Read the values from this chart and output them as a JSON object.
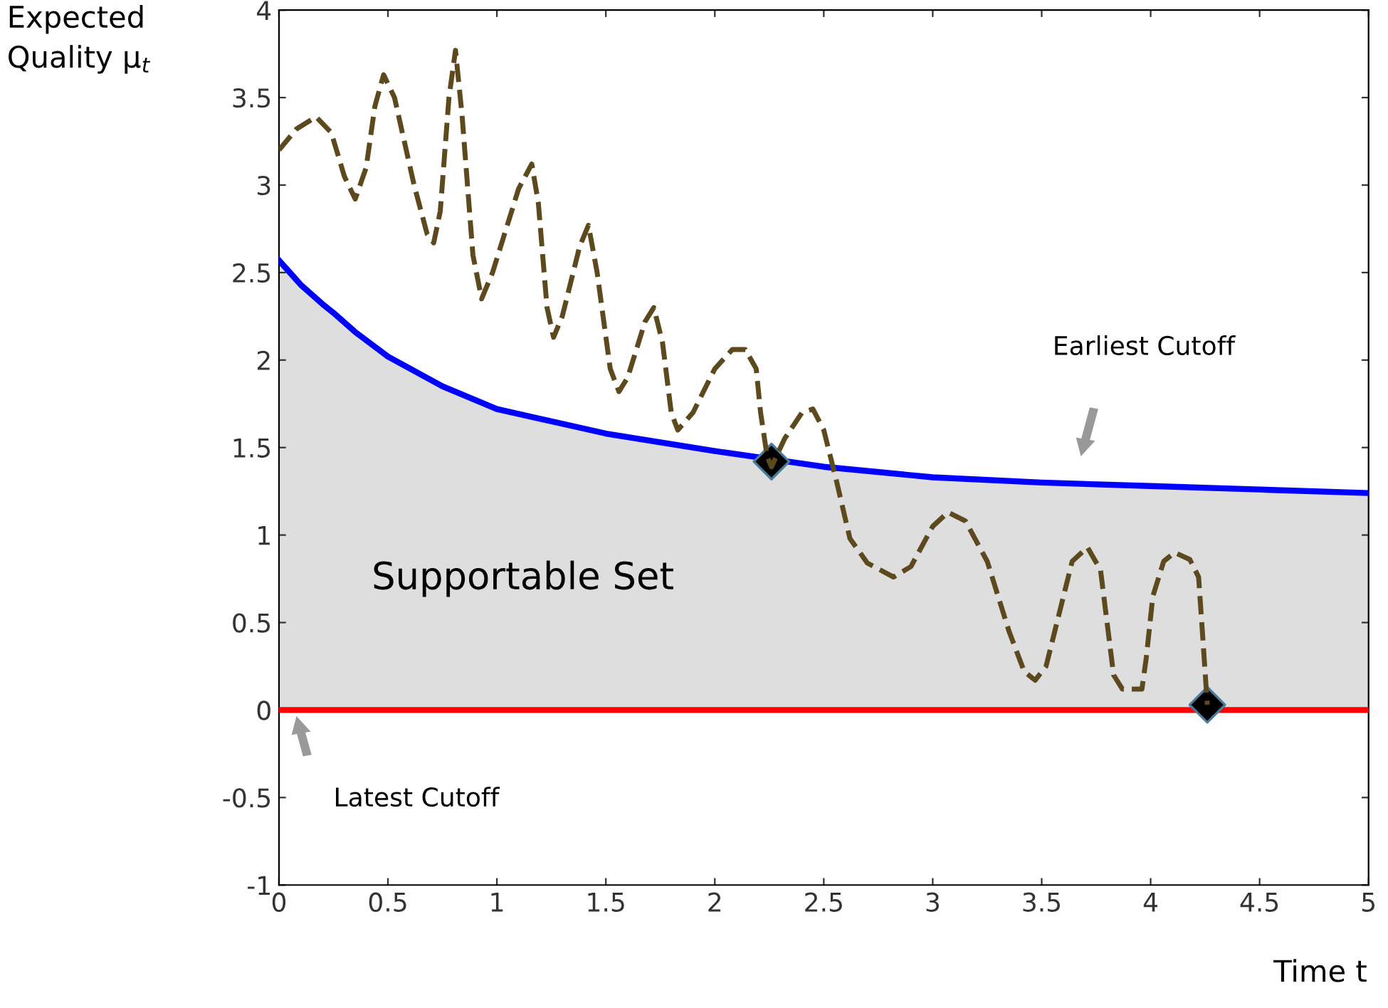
{
  "chart_data": {
    "type": "line",
    "xlabel": "Time t",
    "ylabel": "Expected\nQuality μ$_{t}$",
    "xlim": [
      0,
      5
    ],
    "ylim": [
      -1,
      4
    ],
    "xticks": [
      0,
      0.5,
      1,
      1.5,
      2,
      2.5,
      3,
      3.5,
      4,
      4.5,
      5
    ],
    "yticks": [
      -1,
      -0.5,
      0,
      0.5,
      1,
      1.5,
      2,
      2.5,
      3,
      3.5,
      4
    ],
    "series": [
      {
        "type": "area",
        "color": "#0000ff",
        "x": [
          0,
          0.05,
          0.1,
          0.2,
          0.25,
          0.35,
          0.5,
          0.75,
          1,
          1.5,
          2,
          2.5,
          3,
          3.5,
          4,
          4.5,
          5
        ],
        "values": [
          2.57,
          2.5,
          2.43,
          2.32,
          2.27,
          2.16,
          2.02,
          1.85,
          1.72,
          1.58,
          1.48,
          1.39,
          1.33,
          1.3,
          1.28,
          1.26,
          1.24
        ]
      },
      {
        "color": "#ff0000",
        "x": [
          0,
          5
        ],
        "values": [
          0,
          0
        ]
      },
      {
        "color": "#5c4a1e",
        "line_style": "dashed",
        "x": [
          0,
          0.08,
          0.17,
          0.24,
          0.3,
          0.35,
          0.4,
          0.44,
          0.48,
          0.53,
          0.62,
          0.68,
          0.71,
          0.74,
          0.78,
          0.81,
          0.84,
          0.89,
          0.93,
          0.98,
          1.1,
          1.16,
          1.19,
          1.23,
          1.26,
          1.3,
          1.38,
          1.42,
          1.46,
          1.52,
          1.56,
          1.6,
          1.68,
          1.72,
          1.76,
          1.8,
          1.83,
          1.9,
          2.0,
          2.08,
          2.14,
          2.19,
          2.21,
          2.24,
          2.26,
          2.32,
          2.4,
          2.45,
          2.5,
          2.56,
          2.62,
          2.7,
          2.82,
          2.9,
          3.0,
          3.07,
          3.15,
          3.25,
          3.35,
          3.42,
          3.47,
          3.52,
          3.58,
          3.64,
          3.71,
          3.77,
          3.8,
          3.83,
          3.87,
          3.96,
          3.98,
          4.01,
          4.06,
          4.11,
          4.18,
          4.22,
          4.24,
          4.26
        ],
        "values": [
          3.2,
          3.32,
          3.39,
          3.3,
          3.05,
          2.92,
          3.1,
          3.45,
          3.63,
          3.5,
          3.0,
          2.72,
          2.67,
          2.85,
          3.5,
          3.77,
          3.4,
          2.6,
          2.35,
          2.5,
          2.98,
          3.12,
          2.9,
          2.3,
          2.13,
          2.25,
          2.65,
          2.77,
          2.5,
          1.95,
          1.82,
          1.9,
          2.22,
          2.3,
          2.1,
          1.7,
          1.6,
          1.7,
          1.95,
          2.06,
          2.06,
          1.95,
          1.7,
          1.45,
          1.39,
          1.55,
          1.7,
          1.72,
          1.6,
          1.3,
          0.98,
          0.84,
          0.76,
          0.82,
          1.05,
          1.13,
          1.08,
          0.85,
          0.45,
          0.22,
          0.17,
          0.25,
          0.55,
          0.85,
          0.93,
          0.8,
          0.5,
          0.2,
          0.12,
          0.12,
          0.3,
          0.65,
          0.85,
          0.9,
          0.86,
          0.76,
          0.4,
          0.03
        ]
      },
      {
        "type": "scatter",
        "color": "#000000",
        "marker": "diamond",
        "x": [
          2.26,
          4.26
        ],
        "values": [
          1.42,
          0.03
        ]
      }
    ],
    "annotations": [
      "Earliest Cutoff",
      "Latest Cutoff",
      "Supportable Set"
    ]
  }
}
